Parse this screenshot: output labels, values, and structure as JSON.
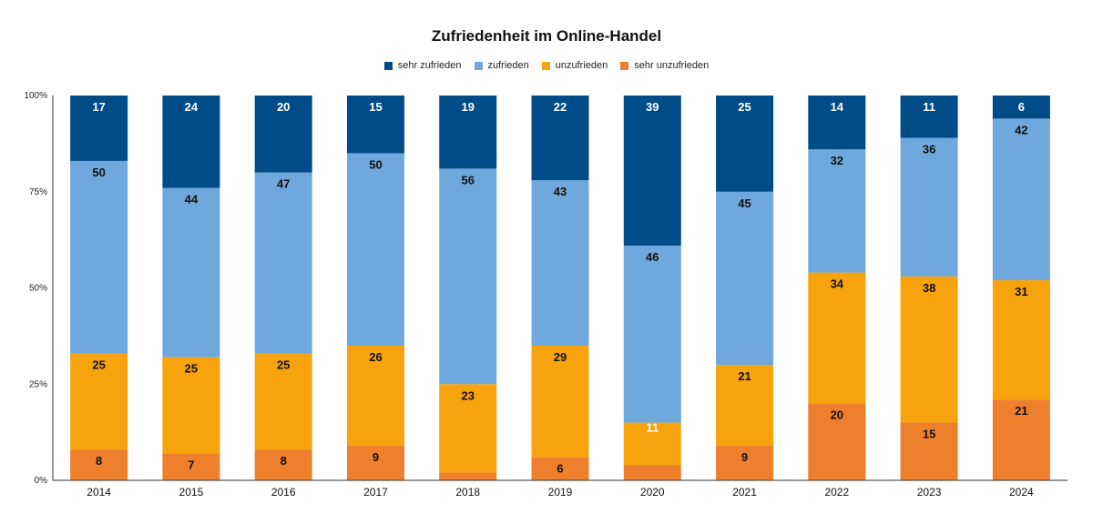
{
  "chart_data": {
    "type": "bar",
    "stacked": true,
    "normalized": true,
    "title": "Zufriedenheit im Online-Handel",
    "categories": [
      "2014",
      "2015",
      "2016",
      "2017",
      "2018",
      "2019",
      "2020",
      "2021",
      "2022",
      "2023",
      "2024"
    ],
    "series": [
      {
        "name": "sehr unzufrieden",
        "color": "#ee7f2d",
        "values": [
          8,
          7,
          8,
          9,
          2,
          6,
          4,
          9,
          20,
          15,
          21
        ]
      },
      {
        "name": "unzufrieden",
        "color": "#f6a30e",
        "values": [
          25,
          25,
          25,
          26,
          23,
          29,
          11,
          21,
          34,
          38,
          31
        ]
      },
      {
        "name": "zufrieden",
        "color": "#6fa8dc",
        "values": [
          50,
          44,
          47,
          50,
          56,
          43,
          46,
          45,
          32,
          36,
          42
        ]
      },
      {
        "name": "sehr zufrieden",
        "color": "#004c88",
        "values": [
          17,
          24,
          20,
          15,
          19,
          22,
          39,
          25,
          14,
          11,
          6
        ]
      }
    ],
    "legend_order": [
      "sehr zufrieden",
      "zufrieden",
      "unzufrieden",
      "sehr unzufrieden"
    ],
    "y_ticks": [
      "0%",
      "25%",
      "50%",
      "75%",
      "100%"
    ],
    "ylim": [
      0,
      100
    ],
    "legend_position": "top-center"
  }
}
